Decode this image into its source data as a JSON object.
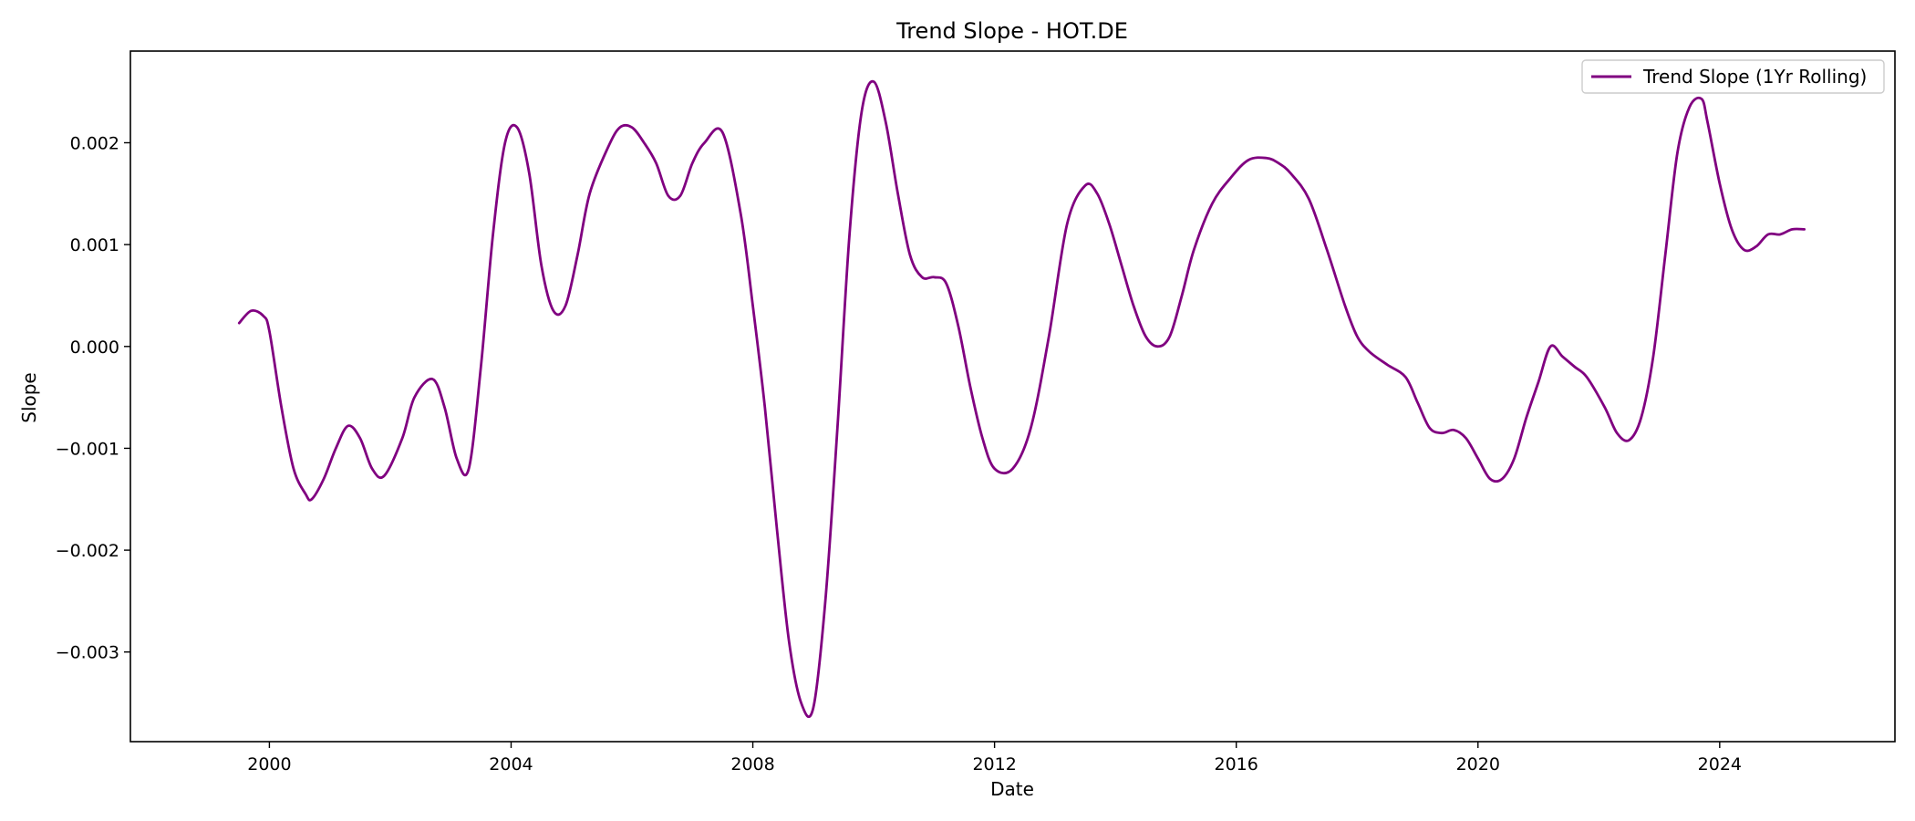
{
  "chart_data": {
    "type": "line",
    "title": "Trend Slope - HOT.DE",
    "xlabel": "Date",
    "ylabel": "Slope",
    "xlim": [
      1997.7,
      2026.9
    ],
    "ylim": [
      -0.00388,
      0.0029
    ],
    "xticks": [
      2000,
      2004,
      2008,
      2012,
      2016,
      2020,
      2024
    ],
    "xtick_labels": [
      "2000",
      "2004",
      "2008",
      "2012",
      "2016",
      "2020",
      "2024"
    ],
    "yticks": [
      -0.003,
      -0.002,
      -0.001,
      0.0,
      0.001,
      0.002
    ],
    "ytick_labels": [
      "−0.003",
      "−0.002",
      "−0.001",
      "0.000",
      "0.001",
      "0.002"
    ],
    "grid": false,
    "legend_position": "top-right",
    "series": [
      {
        "name": "Trend Slope (1Yr Rolling)",
        "color": "#800080",
        "x": [
          1999.5,
          1999.7,
          1999.9,
          2000.0,
          2000.2,
          2000.4,
          2000.6,
          2000.7,
          2000.9,
          2001.1,
          2001.3,
          2001.5,
          2001.7,
          2001.9,
          2002.2,
          2002.4,
          2002.7,
          2002.9,
          2003.1,
          2003.3,
          2003.5,
          2003.7,
          2003.9,
          2004.1,
          2004.3,
          2004.5,
          2004.7,
          2004.9,
          2005.1,
          2005.3,
          2005.6,
          2005.8,
          2006.0,
          2006.2,
          2006.4,
          2006.6,
          2006.8,
          2007.0,
          2007.2,
          2007.5,
          2007.8,
          2008.0,
          2008.2,
          2008.4,
          2008.6,
          2008.8,
          2009.0,
          2009.2,
          2009.4,
          2009.6,
          2009.8,
          2010.0,
          2010.2,
          2010.4,
          2010.6,
          2010.8,
          2011.0,
          2011.2,
          2011.4,
          2011.6,
          2011.8,
          2012.0,
          2012.3,
          2012.6,
          2012.9,
          2013.2,
          2013.5,
          2013.7,
          2013.9,
          2014.1,
          2014.3,
          2014.5,
          2014.7,
          2014.9,
          2015.1,
          2015.3,
          2015.6,
          2015.9,
          2016.2,
          2016.5,
          2016.7,
          2016.9,
          2017.2,
          2017.5,
          2017.8,
          2018.0,
          2018.2,
          2018.5,
          2018.8,
          2019.0,
          2019.2,
          2019.4,
          2019.6,
          2019.8,
          2020.0,
          2020.2,
          2020.4,
          2020.6,
          2020.8,
          2021.0,
          2021.2,
          2021.4,
          2021.6,
          2021.8,
          2022.1,
          2022.3,
          2022.5,
          2022.7,
          2022.9,
          2023.1,
          2023.3,
          2023.5,
          2023.7,
          2023.8,
          2024.0,
          2024.2,
          2024.4,
          2024.6,
          2024.8,
          2025.0,
          2025.2,
          2025.4
        ],
        "y": [
          0.00023,
          0.00035,
          0.0003,
          0.00015,
          -0.0006,
          -0.0012,
          -0.00145,
          -0.0015,
          -0.0013,
          -0.001,
          -0.00078,
          -0.0009,
          -0.0012,
          -0.00127,
          -0.0009,
          -0.0005,
          -0.00032,
          -0.0006,
          -0.0011,
          -0.0012,
          -0.0002,
          0.0011,
          0.002,
          0.00215,
          0.0017,
          0.0008,
          0.00035,
          0.0004,
          0.0009,
          0.0015,
          0.00195,
          0.00215,
          0.00215,
          0.002,
          0.0018,
          0.00148,
          0.00148,
          0.0018,
          0.002,
          0.0021,
          0.0013,
          0.0004,
          -0.0006,
          -0.0018,
          -0.0029,
          -0.0035,
          -0.00355,
          -0.0025,
          -0.0008,
          0.0011,
          0.0023,
          0.0026,
          0.0022,
          0.0015,
          0.0009,
          0.00068,
          0.00068,
          0.00062,
          0.0002,
          -0.0004,
          -0.0009,
          -0.0012,
          -0.0012,
          -0.0008,
          0.0001,
          0.0012,
          0.00158,
          0.0015,
          0.0012,
          0.0008,
          0.0004,
          0.0001,
          0.0,
          0.0001,
          0.0005,
          0.00095,
          0.0014,
          0.00165,
          0.00183,
          0.00185,
          0.0018,
          0.0017,
          0.00145,
          0.00095,
          0.0004,
          0.0001,
          -5e-05,
          -0.00018,
          -0.0003,
          -0.00055,
          -0.0008,
          -0.00085,
          -0.00082,
          -0.0009,
          -0.0011,
          -0.0013,
          -0.0013,
          -0.0011,
          -0.0007,
          -0.00035,
          0.0,
          -0.0001,
          -0.0002,
          -0.0003,
          -0.0006,
          -0.00085,
          -0.00092,
          -0.0007,
          -0.0001,
          0.0009,
          0.0019,
          0.00235,
          0.00243,
          0.0022,
          0.0016,
          0.00115,
          0.00095,
          0.00098,
          0.0011,
          0.0011,
          0.00115,
          0.00115
        ]
      }
    ]
  }
}
